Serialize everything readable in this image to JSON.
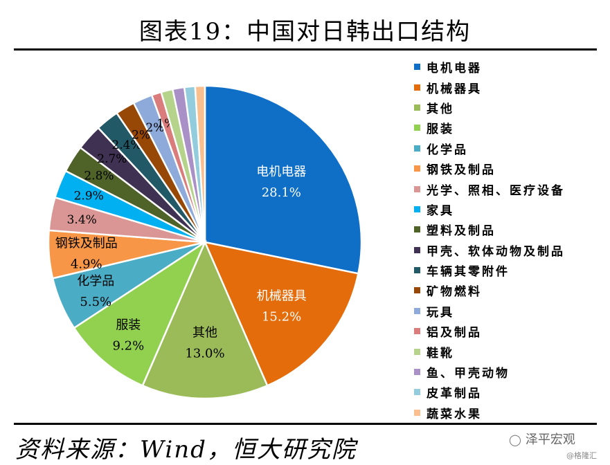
{
  "header": {
    "title": "图表19：中国对日韩出口结构"
  },
  "footer": {
    "source": "资料来源：Wind，恒大研究院",
    "watermark_brand": "泽平宏观",
    "watermark_sub": "@格隆汇"
  },
  "icons": {
    "watermark": "wechat-icon"
  },
  "chart_data": {
    "type": "pie",
    "title": "图表19：中国对日韩出口结构",
    "legend_position": "right",
    "slices": [
      {
        "name": "电机电器",
        "value": 28.1,
        "color": "#0f6fc6",
        "label": "28.1%",
        "show_name": true,
        "label_color": "#ffffff"
      },
      {
        "name": "机械器具",
        "value": 15.2,
        "color": "#e46c0a",
        "label": "15.2%",
        "show_name": true,
        "label_color": "#ffffff"
      },
      {
        "name": "其他",
        "value": 13.0,
        "color": "#9bbb59",
        "label": "13.0%",
        "show_name": true,
        "label_color": "#000000"
      },
      {
        "name": "服装",
        "value": 9.2,
        "color": "#92d050",
        "label": "9.2%",
        "show_name": true,
        "label_color": "#000000"
      },
      {
        "name": "化学品",
        "value": 5.5,
        "color": "#4bacc6",
        "label": "5.5%",
        "show_name": true,
        "label_color": "#000000"
      },
      {
        "name": "钢铁及制品",
        "value": 4.9,
        "color": "#f79646",
        "label": "4.9%",
        "show_name": true,
        "label_color": "#000000"
      },
      {
        "name": "光学、照相、医疗设备",
        "value": 3.4,
        "color": "#d99694",
        "label": "3.4%",
        "show_name": false,
        "label_color": "#000000"
      },
      {
        "name": "家具",
        "value": 2.9,
        "color": "#00b0f0",
        "label": "2.9%",
        "show_name": false,
        "label_color": "#000000"
      },
      {
        "name": "塑料及制品",
        "value": 2.8,
        "color": "#4f6228",
        "label": "2.8%",
        "show_name": false,
        "label_color": "#000000"
      },
      {
        "name": "甲壳、软体动物及制品",
        "value": 2.7,
        "color": "#3f3151",
        "label": "2.7%",
        "show_name": false,
        "label_color": "#000000"
      },
      {
        "name": "车辆其零附件",
        "value": 2.4,
        "color": "#215967",
        "label": "2.4%",
        "show_name": false,
        "label_color": "#000000"
      },
      {
        "name": "矿物燃料",
        "value": 2.0,
        "color": "#974706",
        "label": "2%",
        "show_name": false,
        "label_color": "#000000"
      },
      {
        "name": "玩具",
        "value": 2.0,
        "color": "#8eaadb",
        "label": "2%",
        "show_name": false,
        "label_color": "#000000"
      },
      {
        "name": "铝及制品",
        "value": 1.0,
        "color": "#da7c7c",
        "label": "1%",
        "show_name": false,
        "label_color": "#000000"
      },
      {
        "name": "鞋靴",
        "value": 1.2,
        "color": "#b5d38a",
        "label": "",
        "show_name": false,
        "label_color": "#000000"
      },
      {
        "name": "鱼、甲壳动物",
        "value": 1.2,
        "color": "#a990c6",
        "label": "",
        "show_name": false,
        "label_color": "#000000"
      },
      {
        "name": "皮革制品",
        "value": 1.1,
        "color": "#93cddd",
        "label": "",
        "show_name": false,
        "label_color": "#000000"
      },
      {
        "name": "蔬菜水果",
        "value": 1.0,
        "color": "#fabf8f",
        "label": "",
        "show_name": false,
        "label_color": "#000000"
      }
    ]
  }
}
